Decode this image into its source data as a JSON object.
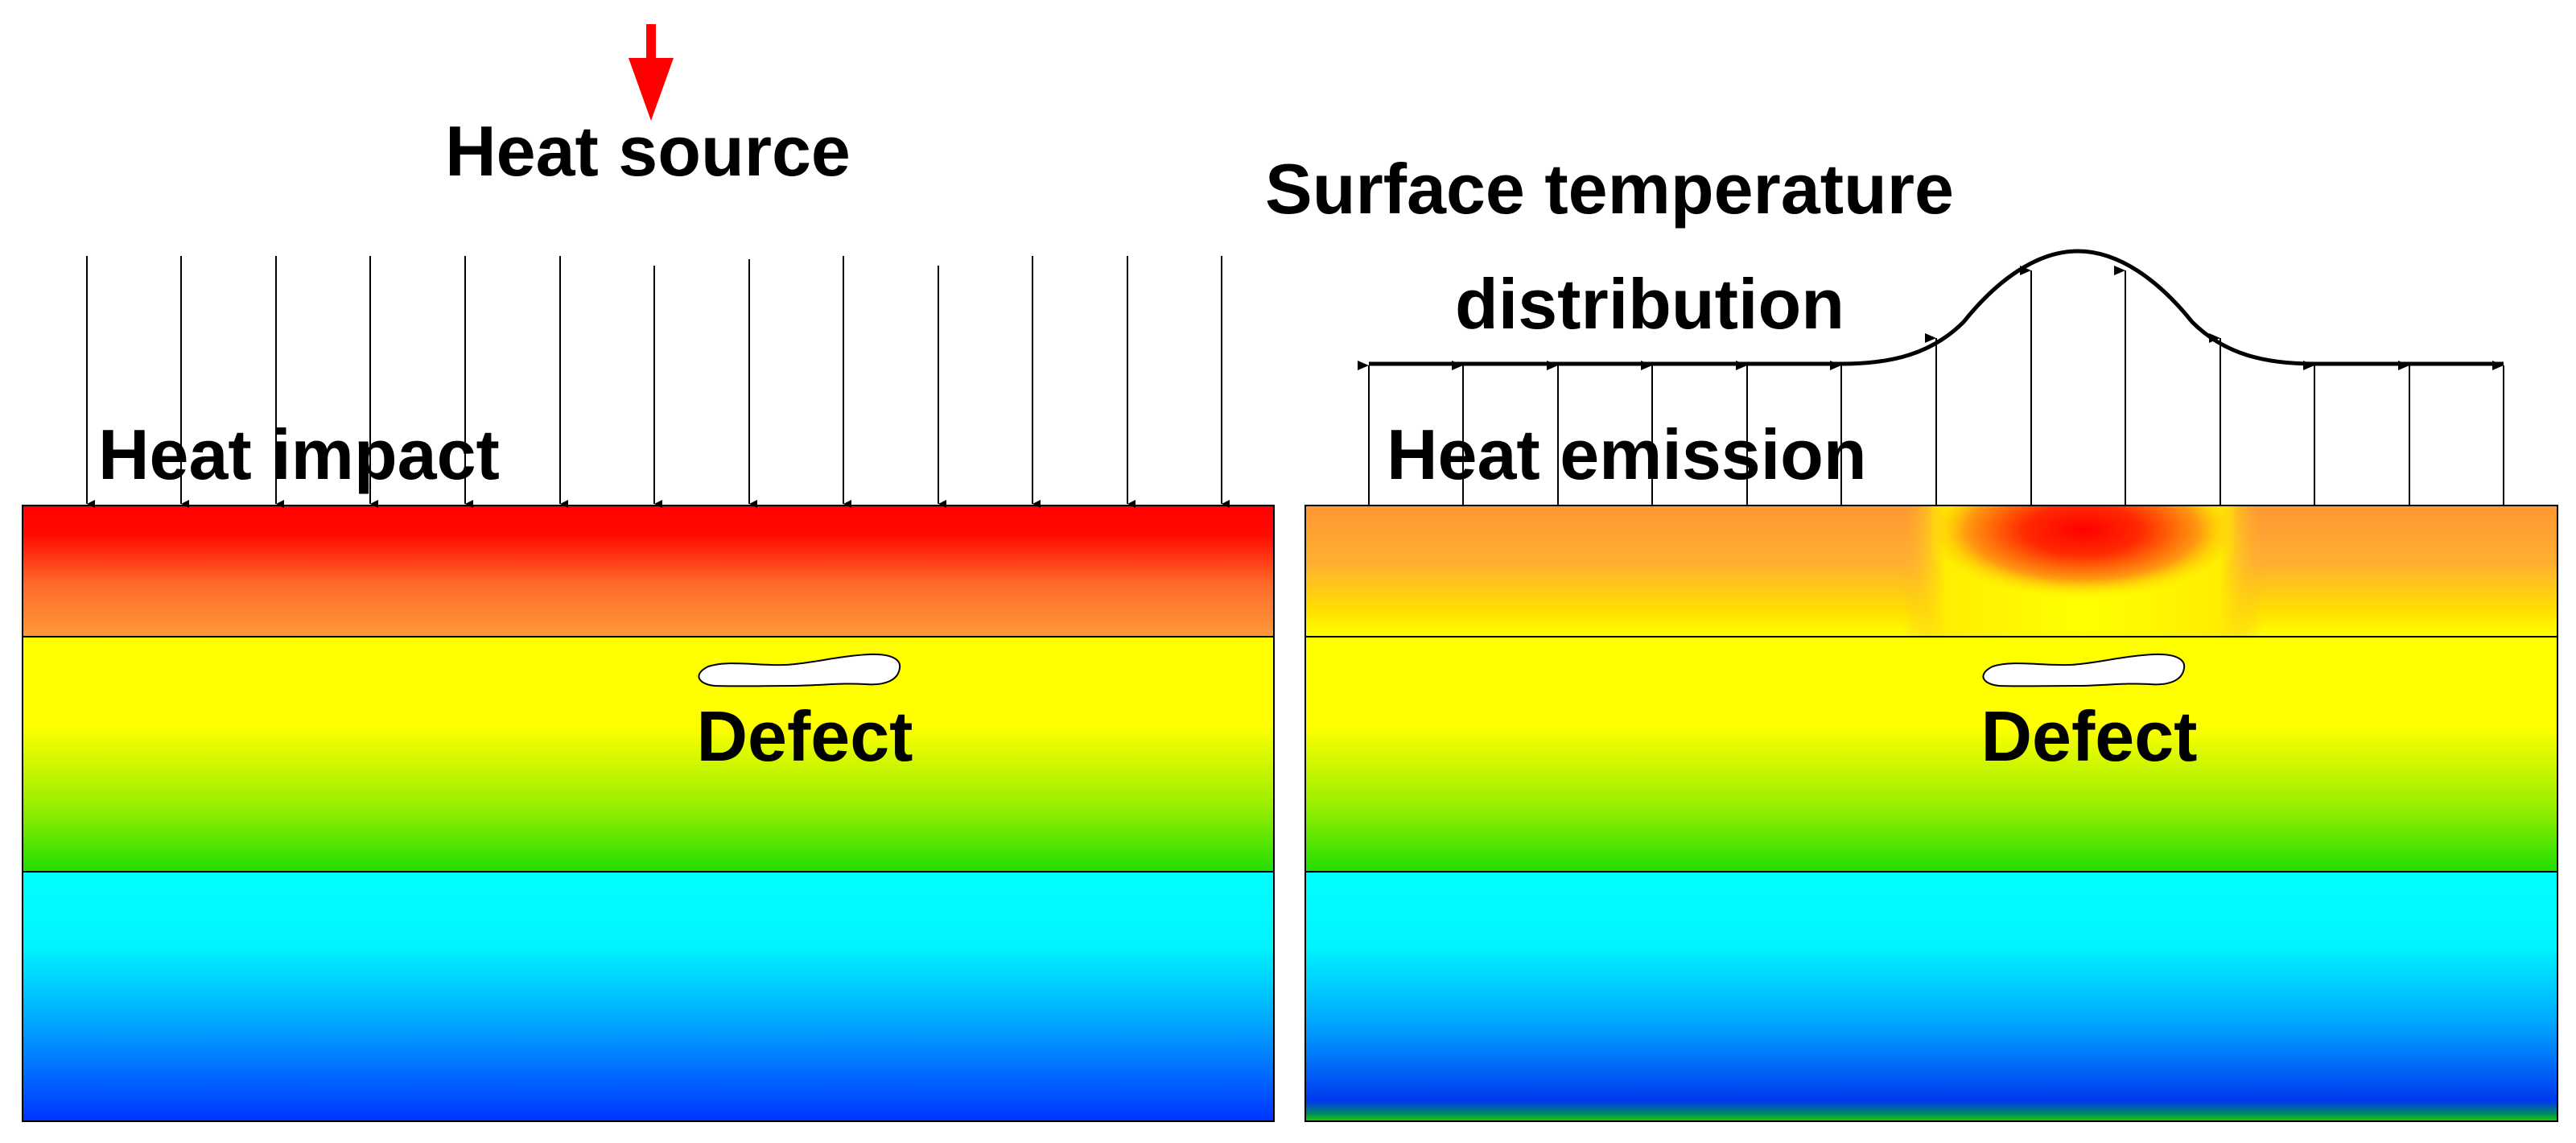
{
  "left_panel": {
    "heat_source_label": "Heat source",
    "heat_impact_label": "Heat impact",
    "defect_label": "Defect"
  },
  "right_panel": {
    "surface_temp_line1": "Surface temperature",
    "surface_temp_line2": "distribution",
    "heat_emission_label": "Heat emission",
    "defect_label": "Defect"
  },
  "colors": {
    "heat_source_arrow": "#ff0000",
    "hot": "#ff0000",
    "warm": "#ff9933",
    "mid": "#ffff00",
    "green": "#33dd00",
    "cyan": "#00ffff",
    "blue": "#0033ff",
    "defect_fill": "#ffffff",
    "outline": "#000000"
  }
}
